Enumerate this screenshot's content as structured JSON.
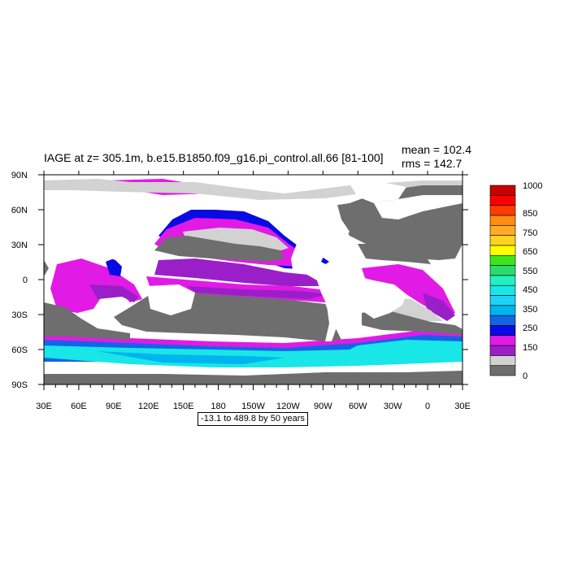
{
  "title": "IAGE at z= 305.1m, b.e15.B1850.f09_g16.pi_control.all.66 [81-100]",
  "stats": {
    "mean": "mean = 102.4",
    "rms": "rms = 142.7"
  },
  "range_note": "-13.1 to 489.8 by 50 years",
  "axes": {
    "lon_ticks": [
      "30E",
      "60E",
      "90E",
      "120E",
      "150E",
      "180",
      "150W",
      "120W",
      "90W",
      "60W",
      "30W",
      "0",
      "30E"
    ],
    "lat_ticks": [
      "90N",
      "60N",
      "30N",
      "0",
      "30S",
      "60S",
      "90S"
    ]
  },
  "colorbar": {
    "colors": [
      "#6e6e6e",
      "#d2d2d2",
      "#9a1fc8",
      "#e21ae6",
      "#0a0ae6",
      "#1464e6",
      "#00b4f0",
      "#1ed2f5",
      "#19e6e6",
      "#22f0c0",
      "#2adc6a",
      "#3ce61e",
      "#ffff00",
      "#ffd21e",
      "#ffaa28",
      "#ff8c14",
      "#ff3c00",
      "#ff0000",
      "#c80000"
    ],
    "labels": [
      "0",
      "150",
      "250",
      "350",
      "450",
      "550",
      "650",
      "750",
      "850",
      "1000"
    ]
  },
  "map_colors": {
    "land": "#6e6e6e",
    "missing": "#d2d2d2",
    "ocean_young": "#ffffff",
    "age_150": "#e21ae6",
    "age_200": "#9a1fc8",
    "age_250": "#0a0ae6",
    "age_300": "#1464e6",
    "age_350": "#00b4f0",
    "age_450": "#19e6e6"
  }
}
